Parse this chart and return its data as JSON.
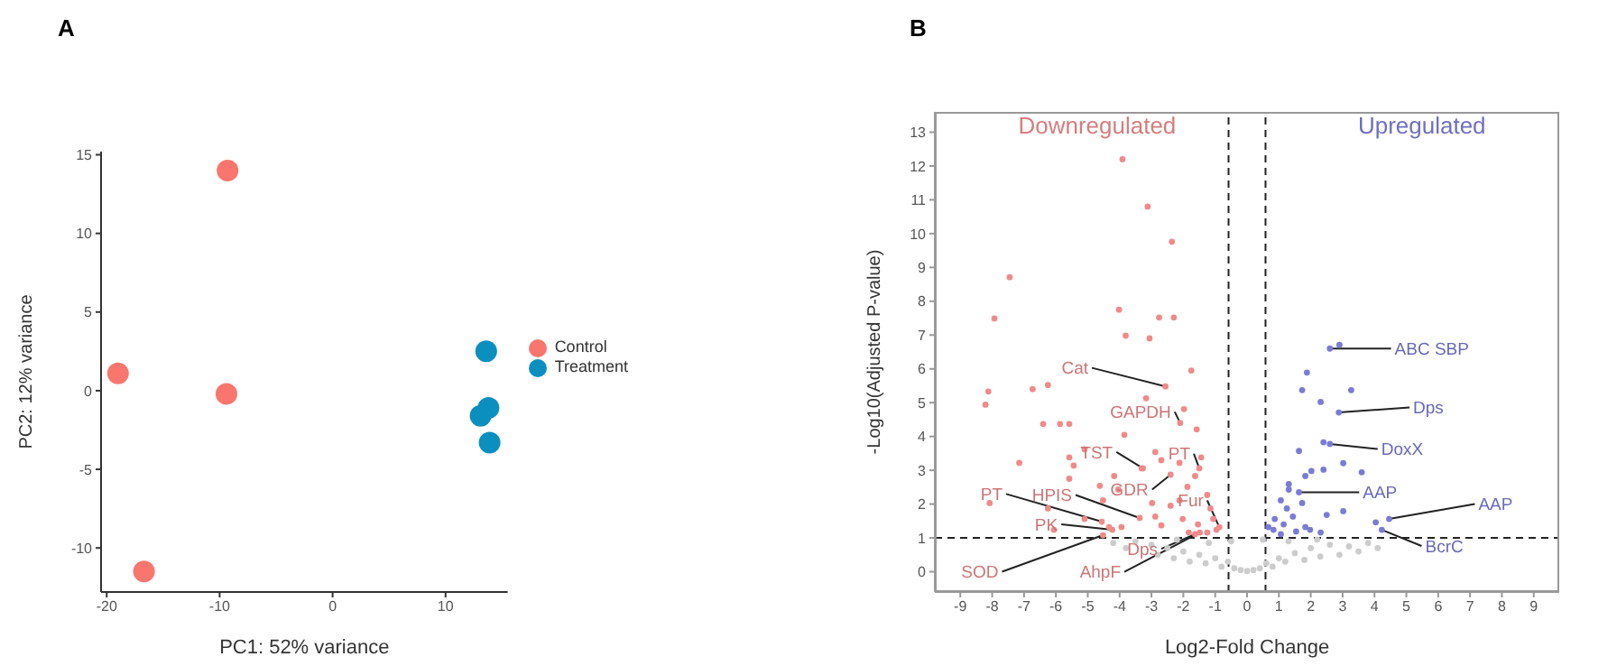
{
  "chart_data": [
    {
      "type": "scatter",
      "title": "A",
      "xlabel": "PC1: 52% variance",
      "ylabel": "PC2: 12% variance",
      "xlim": [
        -20.5,
        15.5
      ],
      "xticks": [
        -20,
        -10,
        0,
        10
      ],
      "ylim": [
        -12.8,
        15.2
      ],
      "yticks": [
        -10,
        -5,
        0,
        5,
        10,
        15
      ],
      "grid": false,
      "legend": "right",
      "marker": "circle",
      "series": [
        {
          "name": "Control",
          "color": "#f8766d",
          "x": [
            -9.3,
            -19,
            -9.4,
            -16.7
          ],
          "values": [
            14,
            1.1,
            -0.2,
            -11.5
          ]
        },
        {
          "name": "Treatment",
          "color": "#0a8fbf",
          "x": [
            13.6,
            13.8,
            13.1,
            13.9
          ],
          "values": [
            2.5,
            -1.1,
            -1.6,
            -3.3
          ]
        }
      ]
    },
    {
      "type": "scatter",
      "title": "B",
      "xlabel": "Log2-Fold Change",
      "ylabel": "-Log10(Adjusted P-value)",
      "xlim": [
        -9.8,
        9.8
      ],
      "xticks": [
        -9,
        -8,
        -7,
        -6,
        -5,
        -4,
        -3,
        -2,
        -1,
        0,
        1,
        2,
        3,
        4,
        5,
        6,
        7,
        8,
        9
      ],
      "ylim": [
        -0.6,
        13.6
      ],
      "yticks": [
        0,
        1,
        2,
        3,
        4,
        5,
        6,
        7,
        8,
        9,
        10,
        11,
        12,
        13
      ],
      "grid": false,
      "legend": false,
      "marker": "circle",
      "ref_lines": [
        {
          "axis": "x",
          "value": -0.58,
          "color": "#222222",
          "line_style": "dashed"
        },
        {
          "axis": "x",
          "value": 0.58,
          "color": "#222222",
          "line_style": "dashed"
        },
        {
          "axis": "y",
          "value": 1,
          "color": "#222222",
          "line_style": "dashed"
        }
      ],
      "series": [
        {
          "color": "#cccccc",
          "x": [
            -4.2,
            -3.8,
            -3.5,
            -3.2,
            -3,
            -2.8,
            -2.5,
            -2.3,
            -2,
            -1.8,
            -1.5,
            -1.3,
            -1,
            -0.8,
            -0.6,
            -0.4,
            -0.2,
            0,
            0.2,
            0.4,
            0.6,
            0.8,
            1,
            1.2,
            1.5,
            1.8,
            2,
            2.3,
            2.6,
            2.9,
            3.2,
            3.5,
            3.8,
            4.1,
            -0.5,
            0.5,
            -1.2,
            1.3,
            -2.2,
            2.2
          ],
          "values": [
            0.85,
            0.7,
            0.9,
            null,
            0.8,
            0.5,
            0.7,
            0.4,
            0.6,
            0.3,
            0.5,
            0.25,
            0.4,
            0.15,
            0.3,
            0.1,
            0.05,
            0.02,
            0.05,
            0.1,
            0.25,
            0.15,
            0.4,
            0.3,
            0.55,
            0.35,
            0.7,
            0.45,
            0.8,
            0.5,
            0.75,
            0.6,
            0.85,
            0.7,
            0.9,
            0.95,
            0.85,
            0.9,
            0.95,
            0.95
          ]
        },
        {
          "name": "Downregulated",
          "color": "#f08a8a",
          "x": [
            -3.91,
            -3.12,
            -2.36,
            -7.45,
            -7.93,
            -4.02,
            -2.76,
            -2.3,
            -3.81,
            -3.06,
            -1.75,
            -8.12,
            -8.21,
            -6.73,
            -6.25,
            -6.4,
            -5.87,
            -5.58,
            -3.17,
            -1.98,
            -1.58,
            -3.85,
            -7.15,
            -5.58,
            -5.44,
            -5.1,
            -4.17,
            -2.88,
            -2.69,
            -3.31,
            -1.44,
            -1.63,
            -1.87,
            -2.12,
            -5.58,
            -4.62,
            -4.04,
            -4.52,
            -2.98,
            -2.88,
            -2.4,
            -2.12,
            -1.25,
            -1.15,
            -8.08,
            -6.25,
            -5.1,
            -3.94,
            -2.69,
            -2.02,
            -1.54,
            -1.06,
            -0.96,
            -1.83,
            -1.25,
            -6.06,
            -4.33,
            -2.56,
            -2.1,
            -3.27,
            -1.5,
            -2.4,
            -4.56,
            -3.37,
            -0.87,
            -4.23,
            -1.63,
            -4.52,
            -1.48
          ],
          "values": [
            12.2,
            10.8,
            9.76,
            8.71,
            7.49,
            7.75,
            7.52,
            7.52,
            6.98,
            6.9,
            5.95,
            5.33,
            4.94,
            5.4,
            5.52,
            4.37,
            4.37,
            4.37,
            5.13,
            4.81,
            4.21,
            4.05,
            3.22,
            3.38,
            3.14,
            3.62,
            2.83,
            3.54,
            3.3,
            3.06,
            3.38,
            2.83,
            2.51,
            3.22,
            2.75,
            2.54,
            2.43,
            2.11,
            2.03,
            1.63,
            1.95,
            2.11,
            2.27,
            1.87,
            2.03,
            1.87,
            1.56,
            1.32,
            1.37,
            1.56,
            1.4,
            1.56,
            1.24,
            1.16,
            1.16,
            1.24,
            1.32,
            5.48,
            4.4,
            3.06,
            3.06,
            2.87,
            1.48,
            1.59,
            1.32,
            1.24,
            1.11,
            1.08,
            1.16
          ]
        },
        {
          "name": "Upregulated",
          "color": "#7b7bd6",
          "x": [
            2.6,
            2.9,
            1.88,
            1.73,
            3.27,
            2.31,
            2.88,
            2.4,
            2.6,
            1.63,
            3.02,
            3.6,
            2.02,
            1.83,
            2.4,
            1.31,
            1.31,
            1.63,
            1.06,
            1.25,
            1.73,
            2.5,
            3.02,
            0.87,
            1.15,
            1.44,
            1.83,
            0.83,
            1.06,
            1.54,
            1.98,
            2.31,
            4.04,
            4.46,
            4.23,
            0.67
          ],
          "values": [
            6.6,
            6.71,
            5.89,
            5.37,
            5.37,
            5.02,
            4.71,
            3.83,
            3.78,
            3.57,
            3.21,
            2.94,
            2.98,
            2.83,
            3.02,
            2.59,
            2.43,
            2.35,
            2.11,
            1.87,
            2.03,
            1.68,
            1.79,
            1.56,
            1.4,
            1.63,
            1.32,
            1.24,
            1.11,
            1.19,
            1.24,
            1.16,
            1.46,
            1.56,
            1.24,
            1.32
          ]
        }
      ],
      "annotations": [
        {
          "text": "Cat",
          "x": -2.56,
          "y": 5.48
        },
        {
          "text": "GAPDH",
          "x": -2.1,
          "y": 4.4
        },
        {
          "text": "TST",
          "x": -3.27,
          "y": 3.06
        },
        {
          "text": "PT",
          "x": -1.5,
          "y": 3.06
        },
        {
          "text": "GDR",
          "x": -2.4,
          "y": 2.87
        },
        {
          "text": "PT",
          "x": -4.56,
          "y": 1.48
        },
        {
          "text": "HPIS",
          "x": -3.37,
          "y": 1.59
        },
        {
          "text": "Fur",
          "x": -0.87,
          "y": 1.32
        },
        {
          "text": "PK",
          "x": -4.23,
          "y": 1.24
        },
        {
          "text": "Dps",
          "x": -1.63,
          "y": 1.11
        },
        {
          "text": "SOD",
          "x": -4.52,
          "y": 1.08
        },
        {
          "text": "AhpF",
          "x": -1.48,
          "y": 1.16
        },
        {
          "text": "ABC SBP",
          "x": 2.6,
          "y": 6.6
        },
        {
          "text": "Dps",
          "x": 2.88,
          "y": 4.71
        },
        {
          "text": "DoxX",
          "x": 2.6,
          "y": 3.78
        },
        {
          "text": "AAP",
          "x": 1.63,
          "y": 2.35
        },
        {
          "text": "AAP",
          "x": 4.46,
          "y": 1.56
        },
        {
          "text": "BcrC",
          "x": 4.23,
          "y": 1.24
        }
      ]
    }
  ]
}
